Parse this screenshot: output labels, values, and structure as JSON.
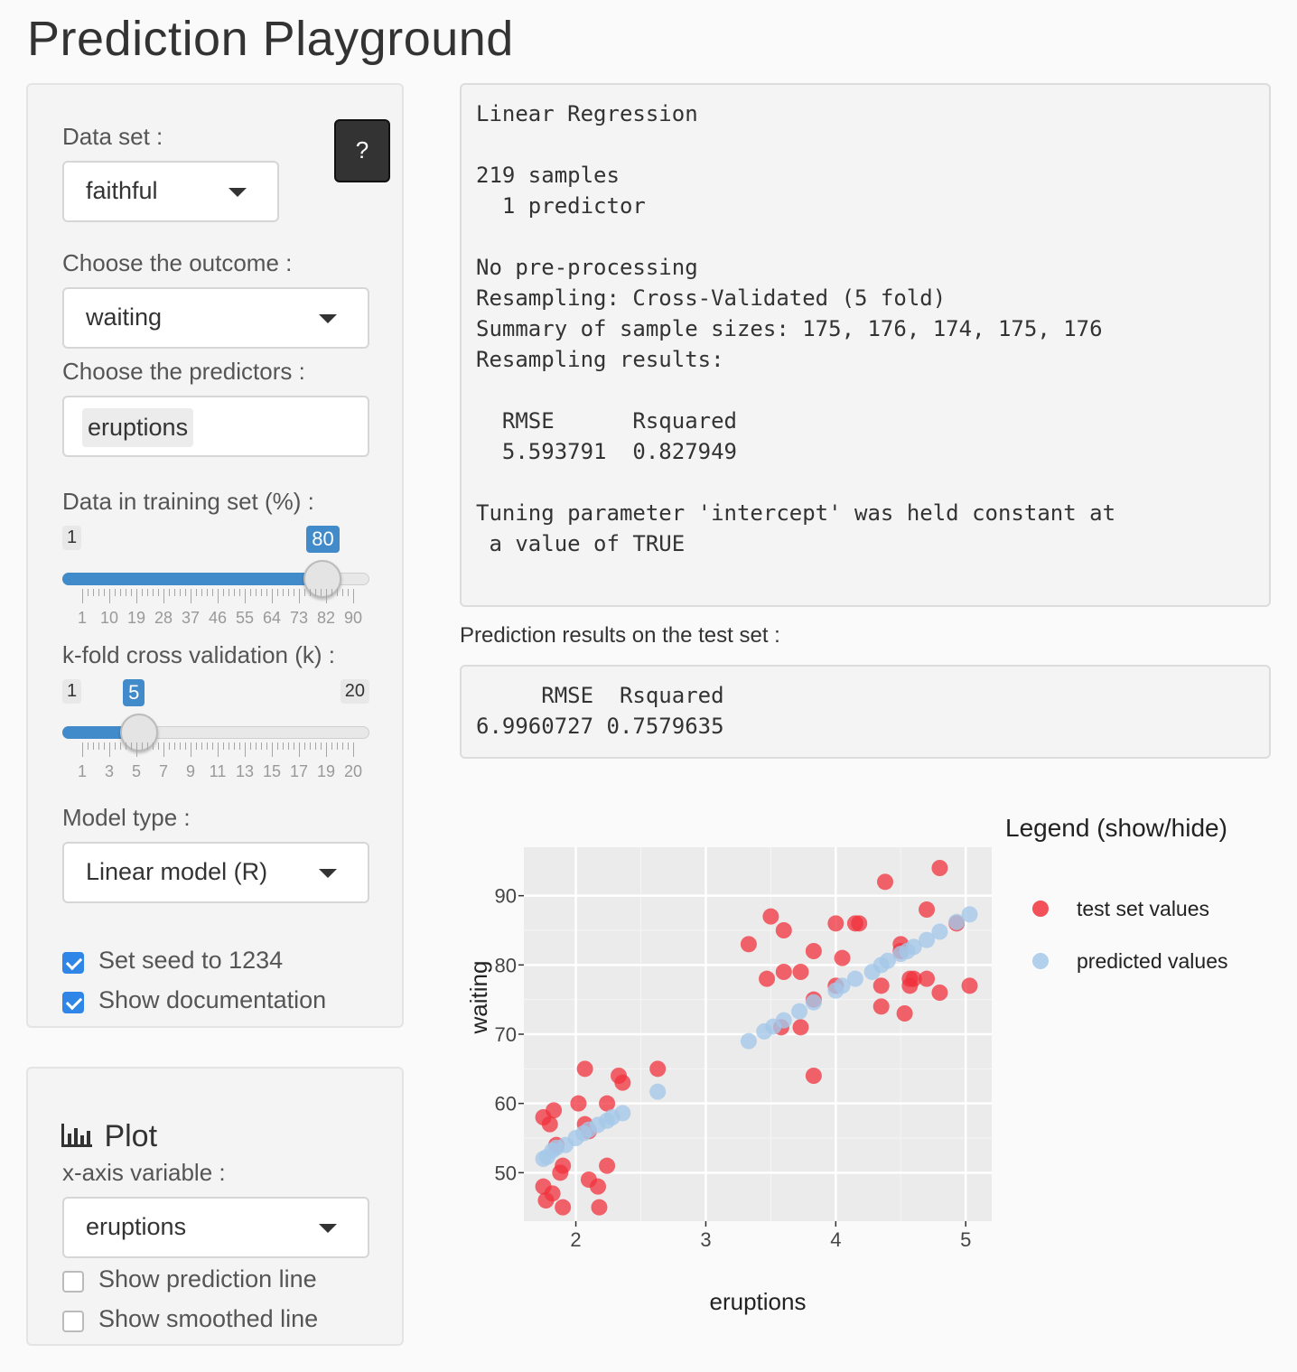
{
  "app": {
    "title": "Prediction Playground"
  },
  "controls": {
    "dataset_label": "Data set :",
    "dataset_value": "faithful",
    "help_label": "?",
    "outcome_label": "Choose the outcome :",
    "outcome_value": "waiting",
    "predictors_label": "Choose the predictors :",
    "predictors_selected": [
      "eruptions"
    ],
    "training_label": "Data in training set (%) :",
    "training_slider": {
      "min": 1,
      "max": 90,
      "value": 80,
      "grid": [
        "1",
        "10",
        "19",
        "28",
        "37",
        "46",
        "55",
        "64",
        "73",
        "82",
        "90"
      ]
    },
    "kfold_label": "k-fold cross validation (k) :",
    "kfold_slider": {
      "min": 1,
      "max": 20,
      "value": 5,
      "grid": [
        "1",
        "3",
        "5",
        "7",
        "9",
        "11",
        "13",
        "15",
        "17",
        "19",
        "20"
      ]
    },
    "model_label": "Model type :",
    "model_value": "Linear model (R)",
    "seed_checkbox": {
      "label": "Set seed to 1234",
      "checked": true
    },
    "doc_checkbox": {
      "label": "Show documentation",
      "checked": true
    }
  },
  "plot_controls": {
    "heading": "Plot",
    "heading_icon": "bar-chart-icon",
    "xvar_label": "x-axis variable :",
    "xvar_value": "eruptions",
    "prediction_line_checkbox": {
      "label": "Show prediction line",
      "checked": false
    },
    "smoothed_line_checkbox": {
      "label": "Show smoothed line",
      "checked": false
    }
  },
  "model_output": {
    "lines": [
      "Linear Regression",
      "",
      "219 samples",
      "  1 predictor",
      "",
      "No pre-processing",
      "Resampling: Cross-Validated (5 fold)",
      "Summary of sample sizes: 175, 176, 174, 175, 176",
      "Resampling results:",
      "",
      "  RMSE      Rsquared",
      "  5.593791  0.827949",
      "",
      "Tuning parameter 'intercept' was held constant at",
      " a value of TRUE"
    ]
  },
  "test_results": {
    "label": "Prediction results on the test set :",
    "lines": [
      "     RMSE  Rsquared",
      "6.9960727 0.7579635"
    ]
  },
  "chart_data": {
    "type": "scatter",
    "title": "",
    "xlabel": "eruptions",
    "ylabel": "waiting",
    "xlim": [
      1.6,
      5.2
    ],
    "ylim": [
      43,
      97
    ],
    "xticks": [
      2,
      3,
      4,
      5
    ],
    "yticks": [
      50,
      60,
      70,
      80,
      90
    ],
    "grid": true,
    "legend_title": "Legend (show/hide)",
    "legend_placement": "right",
    "series": [
      {
        "name": "test set values",
        "color": "#f0323c",
        "points": [
          [
            1.75,
            58
          ],
          [
            1.83,
            59
          ],
          [
            1.8,
            57
          ],
          [
            1.85,
            54
          ],
          [
            1.82,
            47
          ],
          [
            1.75,
            48
          ],
          [
            1.77,
            46
          ],
          [
            1.9,
            45
          ],
          [
            1.88,
            50
          ],
          [
            1.9,
            51
          ],
          [
            2.02,
            60
          ],
          [
            2.07,
            65
          ],
          [
            2.07,
            57
          ],
          [
            2.1,
            56
          ],
          [
            2.1,
            49
          ],
          [
            2.17,
            48
          ],
          [
            2.18,
            45
          ],
          [
            2.24,
            60
          ],
          [
            2.24,
            51
          ],
          [
            2.33,
            64
          ],
          [
            2.36,
            63
          ],
          [
            2.63,
            65
          ],
          [
            3.33,
            83
          ],
          [
            3.5,
            87
          ],
          [
            3.6,
            85
          ],
          [
            3.47,
            78
          ],
          [
            3.6,
            79
          ],
          [
            3.73,
            79
          ],
          [
            3.83,
            82
          ],
          [
            3.83,
            75
          ],
          [
            3.83,
            64
          ],
          [
            3.73,
            71
          ],
          [
            3.58,
            71
          ],
          [
            4.0,
            86
          ],
          [
            4.15,
            86
          ],
          [
            4.18,
            86
          ],
          [
            4.05,
            81
          ],
          [
            4.0,
            77
          ],
          [
            4.38,
            92
          ],
          [
            4.35,
            77
          ],
          [
            4.35,
            74
          ],
          [
            4.5,
            83
          ],
          [
            4.5,
            82
          ],
          [
            4.53,
            73
          ],
          [
            4.57,
            78
          ],
          [
            4.57,
            77
          ],
          [
            4.6,
            78
          ],
          [
            4.7,
            88
          ],
          [
            4.7,
            78
          ],
          [
            4.8,
            94
          ],
          [
            4.8,
            76
          ],
          [
            4.93,
            86
          ],
          [
            5.03,
            77
          ]
        ]
      },
      {
        "name": "predicted values",
        "color": "#a5c8e8",
        "points": [
          [
            1.75,
            52
          ],
          [
            1.78,
            52.3
          ],
          [
            1.82,
            53.2
          ],
          [
            1.85,
            53.6
          ],
          [
            1.92,
            54
          ],
          [
            2.0,
            55
          ],
          [
            2.06,
            55.7
          ],
          [
            2.1,
            56.2
          ],
          [
            2.17,
            56.9
          ],
          [
            2.24,
            57.5
          ],
          [
            2.28,
            58
          ],
          [
            2.36,
            58.6
          ],
          [
            2.63,
            61.7
          ],
          [
            3.33,
            69
          ],
          [
            3.45,
            70.4
          ],
          [
            3.52,
            71.1
          ],
          [
            3.6,
            72
          ],
          [
            3.72,
            73.3
          ],
          [
            3.83,
            74.6
          ],
          [
            4.0,
            76.3
          ],
          [
            4.05,
            77
          ],
          [
            4.15,
            78
          ],
          [
            4.28,
            79
          ],
          [
            4.35,
            80
          ],
          [
            4.4,
            80.6
          ],
          [
            4.5,
            81.6
          ],
          [
            4.55,
            82
          ],
          [
            4.6,
            82.6
          ],
          [
            4.7,
            83.6
          ],
          [
            4.8,
            84.8
          ],
          [
            4.93,
            86.2
          ],
          [
            5.03,
            87.3
          ]
        ]
      }
    ]
  }
}
